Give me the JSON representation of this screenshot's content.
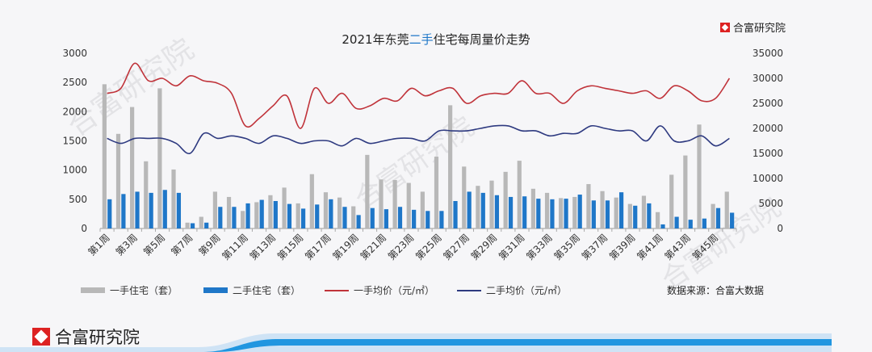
{
  "brand": {
    "name": "合富研究院"
  },
  "title": {
    "pre": "2021年东莞",
    "highlight": "二手",
    "post": "住宅每周量价走势"
  },
  "source": "数据来源：合富大数据",
  "colors": {
    "new_bar": "#b8b8b8",
    "second_bar": "#1f77c8",
    "new_line": "#c0333a",
    "second_line": "#2e3a80",
    "footer_band": "#2196e0"
  },
  "chart_data": {
    "type": "bar",
    "title": "2021年东莞二手住宅每周量价走势",
    "categories": [
      "第1周",
      "第2周",
      "第3周",
      "第4周",
      "第5周",
      "第6周",
      "第7周",
      "第8周",
      "第9周",
      "第10周",
      "第11周",
      "第12周",
      "第13周",
      "第14周",
      "第15周",
      "第16周",
      "第17周",
      "第18周",
      "第19周",
      "第20周",
      "第21周",
      "第22周",
      "第23周",
      "第24周",
      "第25周",
      "第26周",
      "第27周",
      "第28周",
      "第29周",
      "第30周",
      "第31周",
      "第32周",
      "第33周",
      "第34周",
      "第35周",
      "第36周",
      "第37周",
      "第38周",
      "第39周",
      "第40周",
      "第41周",
      "第42周",
      "第43周",
      "第44周",
      "第45周",
      "第46周"
    ],
    "tick_labels": [
      "第1周",
      "第3周",
      "第5周",
      "第7周",
      "第9周",
      "第11周",
      "第13周",
      "第15周",
      "第17周",
      "第19周",
      "第21周",
      "第23周",
      "第25周",
      "第27周",
      "第29周",
      "第31周",
      "第33周",
      "第35周",
      "第37周",
      "第39周",
      "第41周",
      "第43周",
      "第45周"
    ],
    "y_left": {
      "range": [
        0,
        3000
      ],
      "ticks": [
        "0",
        "500",
        "1000",
        "1500",
        "2000",
        "2500",
        "3000"
      ]
    },
    "y_right": {
      "range": [
        0,
        35000
      ],
      "ticks": [
        "0",
        "5000",
        "10000",
        "15000",
        "20000",
        "25000",
        "30000",
        "35000"
      ]
    },
    "series": [
      {
        "name": "一手住宅（套）",
        "kind": "bar",
        "axis": "left",
        "values": [
          2470,
          1620,
          2080,
          1150,
          2400,
          1010,
          100,
          200,
          630,
          540,
          300,
          450,
          570,
          700,
          430,
          930,
          620,
          530,
          380,
          1260,
          840,
          830,
          780,
          630,
          1230,
          2110,
          1060,
          730,
          820,
          970,
          1160,
          680,
          610,
          520,
          540,
          760,
          640,
          530,
          420,
          560,
          280,
          920,
          1250,
          1780,
          420,
          630
        ]
      },
      {
        "name": "二手住宅（套）",
        "kind": "bar",
        "axis": "left",
        "values": [
          500,
          590,
          630,
          610,
          660,
          610,
          90,
          100,
          370,
          370,
          430,
          490,
          470,
          420,
          340,
          410,
          500,
          370,
          230,
          350,
          330,
          370,
          320,
          300,
          300,
          470,
          630,
          610,
          570,
          540,
          550,
          510,
          500,
          510,
          580,
          480,
          480,
          620,
          390,
          430,
          70,
          200,
          150,
          170,
          350,
          270
        ]
      },
      {
        "name": "一手均价（元/㎡）",
        "kind": "line",
        "axis": "right",
        "values": [
          27000,
          28000,
          33000,
          29500,
          30000,
          28500,
          30500,
          29500,
          29000,
          27000,
          20500,
          22000,
          24500,
          26500,
          20000,
          28000,
          25000,
          27000,
          24000,
          24500,
          26000,
          25500,
          28000,
          26500,
          27500,
          28000,
          25000,
          26500,
          27000,
          27000,
          29500,
          27000,
          27000,
          25000,
          27500,
          28500,
          28000,
          27500,
          27000,
          27500,
          26000,
          28500,
          27500,
          25500,
          26000,
          30000
        ]
      },
      {
        "name": "二手均价（元/㎡）",
        "kind": "line",
        "axis": "right",
        "values": [
          18000,
          17000,
          18000,
          18000,
          18000,
          17000,
          15000,
          19000,
          18000,
          18500,
          18000,
          17000,
          18500,
          18000,
          17000,
          17500,
          17500,
          16500,
          18000,
          17000,
          17500,
          18000,
          18000,
          17500,
          19500,
          19500,
          19500,
          20000,
          20500,
          20500,
          19500,
          19500,
          18500,
          19000,
          19000,
          20500,
          20000,
          19500,
          19500,
          17500,
          20500,
          17500,
          17500,
          18500,
          16500,
          18000
        ]
      }
    ]
  }
}
